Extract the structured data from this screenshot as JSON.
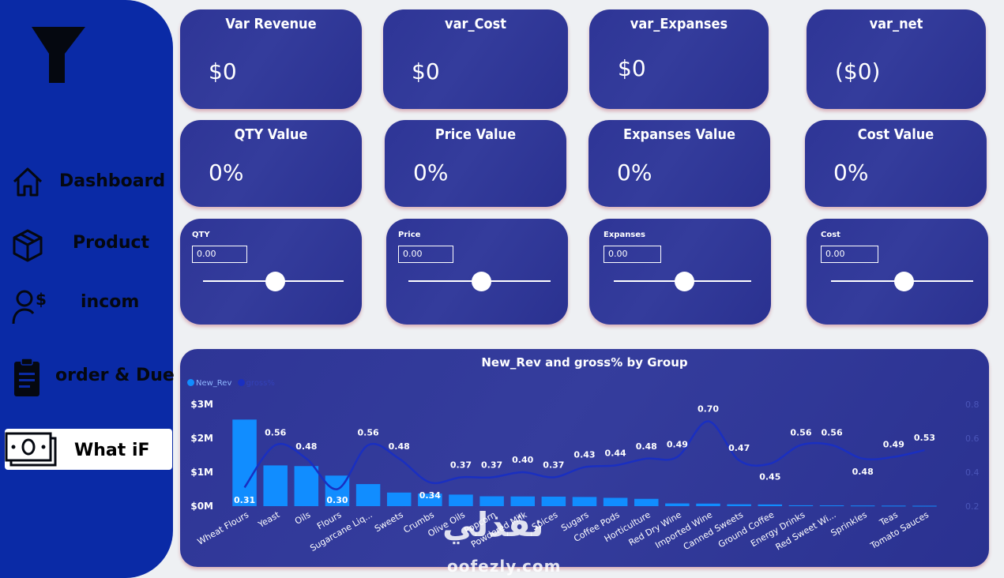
{
  "sidebar": {
    "items": [
      {
        "label": "Dashboard",
        "icon": "home-icon"
      },
      {
        "label": "Product",
        "icon": "box-icon"
      },
      {
        "label": "incom",
        "icon": "user-dollar-icon"
      },
      {
        "label": "order & Due",
        "icon": "clipboard-icon"
      },
      {
        "label": "What iF",
        "icon": "cash-icon"
      }
    ]
  },
  "kpis": [
    {
      "title": "Var Revenue",
      "value": "$0"
    },
    {
      "title": "var_Cost",
      "value": "$0"
    },
    {
      "title": "var_Expanses",
      "value": "$0"
    },
    {
      "title": "var_net",
      "value": "($0)"
    }
  ],
  "percents": [
    {
      "title": "QTY Value",
      "value": "0%"
    },
    {
      "title": "Price Value",
      "value": "0%"
    },
    {
      "title": "Expanses Value",
      "value": "0%"
    },
    {
      "title": "Cost Value",
      "value": "0%"
    }
  ],
  "sliders": [
    {
      "label": "QTY",
      "value": "0.00",
      "level": 0.5
    },
    {
      "label": "Price",
      "value": "0.00",
      "level": 0.5
    },
    {
      "label": "Expanses",
      "value": "0.00",
      "level": 0.5
    },
    {
      "label": "Cost",
      "value": "0.00",
      "level": 0.5
    }
  ],
  "watermark": {
    "arabic": "نفذلي",
    "latin": "oofezly.com"
  },
  "colors": {
    "sidebar": "#0a2aa6",
    "card": "#2f3696",
    "bar": "#118dff",
    "line": "#1a2fc0",
    "background": "#eef0f3"
  },
  "chart_data": {
    "type": "bar",
    "title": "New_Rev and gross% by Group",
    "legend": [
      "New_Rev",
      "gross%"
    ],
    "legend_position": "top-left",
    "categories": [
      "Wheat Flours",
      "Yeast",
      "Oils",
      "Flours",
      "Sugarcane Liq...",
      "Sweets",
      "Crumbs",
      "Olive Oils",
      "Popcorn",
      "Powdered Milk",
      "Spices",
      "Sugars",
      "Coffee Pods",
      "Horticulture",
      "Red Dry Wine",
      "Imported Wine",
      "Canned Sweets",
      "Ground Coffee",
      "Energy Drinks",
      "Red Sweet Wi...",
      "Sprinkles",
      "Teas",
      "Tomato Sauces"
    ],
    "series": [
      {
        "name": "New_Rev",
        "type": "bar",
        "axis": "left",
        "values": [
          2550000,
          1200000,
          1180000,
          900000,
          650000,
          400000,
          370000,
          340000,
          290000,
          285000,
          280000,
          270000,
          245000,
          215000,
          80000,
          75000,
          55000,
          50000,
          25000,
          22000,
          18000,
          15000,
          12000
        ]
      },
      {
        "name": "gross%",
        "type": "line",
        "axis": "right",
        "values": [
          0.31,
          0.56,
          0.48,
          0.3,
          0.56,
          0.48,
          0.34,
          0.37,
          0.37,
          0.4,
          0.37,
          0.43,
          0.44,
          0.48,
          0.49,
          0.7,
          0.47,
          0.45,
          0.56,
          0.56,
          0.48,
          0.49,
          0.53
        ],
        "labels": [
          "0.31",
          "0.56",
          "0.48",
          "0.30",
          "0.56",
          "0.48",
          "0.34",
          "0.37",
          "0.37",
          "0.40",
          "0.37",
          "0.43",
          "0.44",
          "0.48",
          "0.49",
          "0.70",
          "0.47",
          "0.45",
          "0.56",
          "0.56",
          "0.48",
          "0.49",
          "0.53"
        ]
      }
    ],
    "y_left_ticks": [
      "$0M",
      "$1M",
      "$2M",
      "$3M"
    ],
    "y_left_range": [
      0,
      3000000
    ],
    "y_right_ticks": [
      "0.2",
      "0.4",
      "0.6",
      "0.8"
    ],
    "y_right_range": [
      0.2,
      0.8
    ],
    "grid": false
  }
}
